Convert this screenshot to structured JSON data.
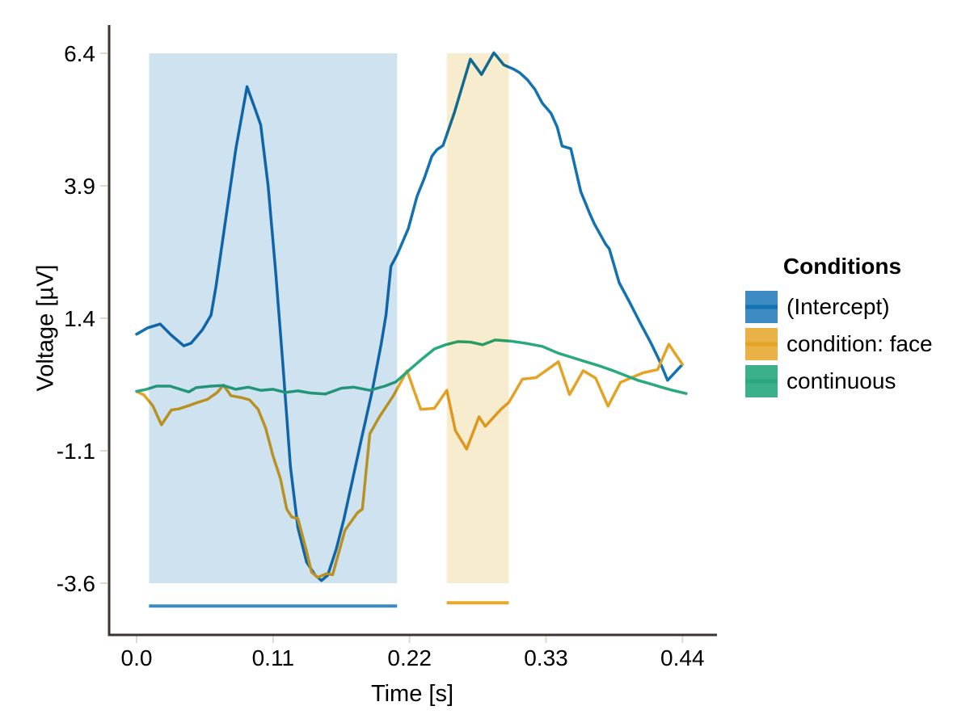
{
  "chart_data": {
    "type": "line",
    "title": "",
    "xlabel": "Time [s]",
    "ylabel": "Voltage [µV]",
    "x_ticks": {
      "values": [
        0.0,
        0.11,
        0.22,
        0.33,
        0.44
      ],
      "labels": [
        "0.0",
        "0.11",
        "0.22",
        "0.33",
        "0.44"
      ]
    },
    "y_ticks": {
      "values": [
        6.4,
        3.9,
        1.4,
        -1.1,
        -3.6
      ],
      "labels": [
        "6.4",
        "3.9",
        "1.4",
        "-1.1",
        "-3.6"
      ]
    },
    "xlim": [
      -0.021,
      0.467
    ],
    "ylim": [
      -4.56,
      6.92
    ],
    "grid": false,
    "background": "#ffffff",
    "axis_color": "#3b3430",
    "tick_color": "#e3d8c8",
    "text_color": "#000000",
    "legend": {
      "title": "Conditions",
      "position": "right"
    },
    "series": [
      {
        "name": "(Intercept)",
        "color": "#1272b2",
        "band_color": "#3e8ac2",
        "points": [
          [
            0.0,
            1.1
          ],
          [
            0.009,
            1.22
          ],
          [
            0.019,
            1.29
          ],
          [
            0.028,
            1.08
          ],
          [
            0.038,
            0.88
          ],
          [
            0.044,
            0.93
          ],
          [
            0.053,
            1.18
          ],
          [
            0.06,
            1.46
          ],
          [
            0.064,
            2.0
          ],
          [
            0.072,
            3.3
          ],
          [
            0.08,
            4.6
          ],
          [
            0.089,
            5.77
          ],
          [
            0.096,
            5.32
          ],
          [
            0.1,
            5.05
          ],
          [
            0.106,
            3.9
          ],
          [
            0.112,
            2.3
          ],
          [
            0.118,
            0.5
          ],
          [
            0.124,
            -1.4
          ],
          [
            0.13,
            -2.55
          ],
          [
            0.137,
            -3.2
          ],
          [
            0.144,
            -3.45
          ],
          [
            0.149,
            -3.55
          ],
          [
            0.154,
            -3.45
          ],
          [
            0.161,
            -2.95
          ],
          [
            0.167,
            -2.4
          ],
          [
            0.174,
            -1.65
          ],
          [
            0.181,
            -0.9
          ],
          [
            0.19,
            0.04
          ],
          [
            0.197,
            0.9
          ],
          [
            0.201,
            1.46
          ],
          [
            0.205,
            2.38
          ],
          [
            0.21,
            2.6
          ],
          [
            0.219,
            3.09
          ],
          [
            0.226,
            3.7
          ],
          [
            0.232,
            4.05
          ],
          [
            0.238,
            4.46
          ],
          [
            0.242,
            4.58
          ],
          [
            0.247,
            4.66
          ],
          [
            0.256,
            5.27
          ],
          [
            0.269,
            6.29
          ],
          [
            0.278,
            6.0
          ],
          [
            0.288,
            6.41
          ],
          [
            0.296,
            6.18
          ],
          [
            0.304,
            6.1
          ],
          [
            0.309,
            6.03
          ],
          [
            0.315,
            5.9
          ],
          [
            0.321,
            5.72
          ],
          [
            0.327,
            5.46
          ],
          [
            0.334,
            5.27
          ],
          [
            0.339,
            5.01
          ],
          [
            0.343,
            4.65
          ],
          [
            0.35,
            4.6
          ],
          [
            0.358,
            3.79
          ],
          [
            0.365,
            3.39
          ],
          [
            0.369,
            3.18
          ],
          [
            0.378,
            2.8
          ],
          [
            0.381,
            2.71
          ],
          [
            0.389,
            2.07
          ],
          [
            0.397,
            1.72
          ],
          [
            0.406,
            1.31
          ],
          [
            0.414,
            0.96
          ],
          [
            0.421,
            0.62
          ],
          [
            0.428,
            0.23
          ],
          [
            0.44,
            0.53
          ]
        ]
      },
      {
        "name": "condition: face",
        "color": "#e3a426",
        "band_color": "#eab147",
        "points": [
          [
            0.0,
            0.02
          ],
          [
            0.006,
            -0.05
          ],
          [
            0.013,
            -0.25
          ],
          [
            0.02,
            -0.61
          ],
          [
            0.028,
            -0.33
          ],
          [
            0.034,
            -0.31
          ],
          [
            0.042,
            -0.25
          ],
          [
            0.049,
            -0.19
          ],
          [
            0.057,
            -0.13
          ],
          [
            0.065,
            0.0
          ],
          [
            0.07,
            0.14
          ],
          [
            0.076,
            -0.06
          ],
          [
            0.085,
            -0.1
          ],
          [
            0.091,
            -0.14
          ],
          [
            0.098,
            -0.32
          ],
          [
            0.104,
            -0.67
          ],
          [
            0.11,
            -1.2
          ],
          [
            0.116,
            -1.63
          ],
          [
            0.121,
            -2.2
          ],
          [
            0.125,
            -2.35
          ],
          [
            0.13,
            -2.38
          ],
          [
            0.137,
            -3.0
          ],
          [
            0.141,
            -3.39
          ],
          [
            0.146,
            -3.49
          ],
          [
            0.153,
            -3.42
          ],
          [
            0.158,
            -3.44
          ],
          [
            0.168,
            -2.6
          ],
          [
            0.178,
            -2.27
          ],
          [
            0.182,
            -2.2
          ],
          [
            0.188,
            -0.78
          ],
          [
            0.196,
            -0.45
          ],
          [
            0.207,
            -0.06
          ],
          [
            0.218,
            0.41
          ],
          [
            0.229,
            -0.32
          ],
          [
            0.24,
            -0.3
          ],
          [
            0.25,
            0.04
          ],
          [
            0.257,
            -0.72
          ],
          [
            0.266,
            -1.07
          ],
          [
            0.276,
            -0.46
          ],
          [
            0.281,
            -0.64
          ],
          [
            0.294,
            -0.31
          ],
          [
            0.3,
            -0.19
          ],
          [
            0.311,
            0.25
          ],
          [
            0.322,
            0.28
          ],
          [
            0.34,
            0.58
          ],
          [
            0.349,
            -0.04
          ],
          [
            0.36,
            0.41
          ],
          [
            0.37,
            0.27
          ],
          [
            0.38,
            -0.26
          ],
          [
            0.39,
            0.19
          ],
          [
            0.408,
            0.37
          ],
          [
            0.42,
            0.43
          ],
          [
            0.429,
            0.91
          ],
          [
            0.44,
            0.53
          ]
        ]
      },
      {
        "name": "continuous",
        "color": "#2aa87f",
        "band_color": "#3cb08a",
        "points": [
          [
            0.0,
            0.02
          ],
          [
            0.008,
            0.06
          ],
          [
            0.016,
            0.12
          ],
          [
            0.027,
            0.12
          ],
          [
            0.042,
            0.01
          ],
          [
            0.048,
            0.09
          ],
          [
            0.06,
            0.12
          ],
          [
            0.07,
            0.13
          ],
          [
            0.08,
            0.06
          ],
          [
            0.09,
            0.1
          ],
          [
            0.1,
            0.04
          ],
          [
            0.11,
            0.06
          ],
          [
            0.12,
            0.0
          ],
          [
            0.13,
            0.03
          ],
          [
            0.14,
            -0.01
          ],
          [
            0.152,
            -0.03
          ],
          [
            0.165,
            0.08
          ],
          [
            0.175,
            0.1
          ],
          [
            0.188,
            0.04
          ],
          [
            0.2,
            0.12
          ],
          [
            0.209,
            0.2
          ],
          [
            0.222,
            0.47
          ],
          [
            0.231,
            0.65
          ],
          [
            0.24,
            0.82
          ],
          [
            0.249,
            0.9
          ],
          [
            0.259,
            0.96
          ],
          [
            0.269,
            0.95
          ],
          [
            0.279,
            0.9
          ],
          [
            0.289,
            0.99
          ],
          [
            0.301,
            0.97
          ],
          [
            0.313,
            0.93
          ],
          [
            0.327,
            0.87
          ],
          [
            0.34,
            0.74
          ],
          [
            0.351,
            0.66
          ],
          [
            0.362,
            0.58
          ],
          [
            0.372,
            0.51
          ],
          [
            0.383,
            0.42
          ],
          [
            0.393,
            0.33
          ],
          [
            0.404,
            0.23
          ],
          [
            0.413,
            0.17
          ],
          [
            0.423,
            0.1
          ],
          [
            0.432,
            0.04
          ],
          [
            0.443,
            -0.02
          ]
        ]
      }
    ],
    "significance_regions": [
      {
        "series": "(Intercept)",
        "t_start": 0.01,
        "t_end": 0.21,
        "v_top": 6.4,
        "v_bottom": -3.6,
        "fill": "#cfe2f0",
        "bar_color": "#3e8ac2",
        "bar_level_uV": -4.03
      },
      {
        "series": "condition: face",
        "t_start": 0.25,
        "t_end": 0.3,
        "v_top": 6.4,
        "v_bottom": -3.6,
        "fill": "#f8ecce",
        "bar_color": "#e7a82e",
        "bar_level_uV": -3.97
      }
    ]
  }
}
